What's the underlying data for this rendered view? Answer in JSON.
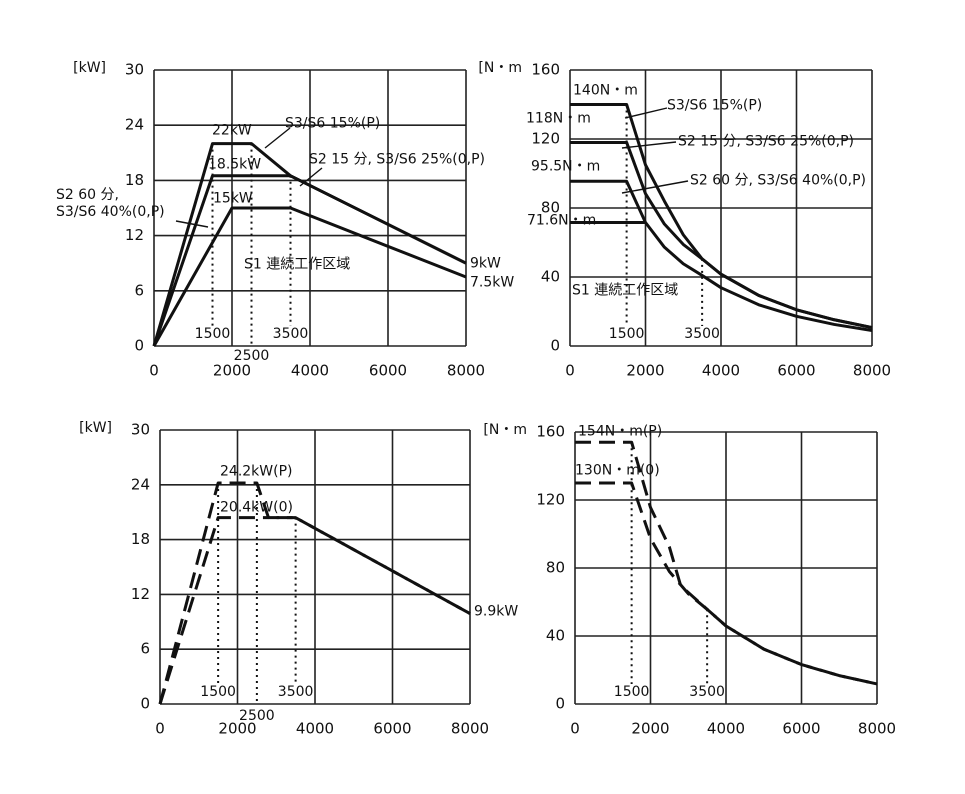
{
  "chart_data": [
    {
      "type": "line",
      "y_label": "[kW]",
      "xlim": [
        0,
        8000
      ],
      "xticks": [
        0,
        2000,
        4000,
        6000,
        8000
      ],
      "ylim": [
        0,
        30
      ],
      "yticks": [
        0,
        6,
        12,
        18,
        24,
        30
      ],
      "grid": true,
      "line_style": "solid",
      "color": "#111111",
      "series": [
        {
          "name": "S3/S6 15%(P)",
          "x": [
            0,
            1500,
            2500,
            3500,
            8000
          ],
          "values": [
            0,
            22,
            22,
            18.5,
            9
          ]
        },
        {
          "name": "S2 15 分, S3/S6 25%(0,P)",
          "x": [
            0,
            1500,
            3500,
            8000
          ],
          "values": [
            0,
            18.5,
            18.5,
            9
          ]
        },
        {
          "name": "S2 60 分,\nS3/S6 40%(0,P)",
          "x": [
            0,
            2000,
            3500,
            8000
          ],
          "values": [
            0,
            15,
            15,
            7.5
          ]
        }
      ],
      "annotations": [
        "22kW",
        "18.5kW",
        "15kW",
        "9kW",
        "7.5kW",
        "S1 連続工作区域"
      ],
      "speed_markers": [
        1500,
        2500,
        3500
      ]
    },
    {
      "type": "line",
      "y_label": "[N・m",
      "xlim": [
        0,
        8000
      ],
      "xticks": [
        0,
        2000,
        4000,
        6000,
        8000
      ],
      "ylim": [
        0,
        160
      ],
      "yticks": [
        0,
        40,
        80,
        120,
        160
      ],
      "grid": true,
      "line_style": "solid",
      "color": "#111111",
      "series": [
        {
          "name": "S3/S6 15%(P)",
          "x": [
            0,
            1500,
            2000,
            2500,
            3000,
            3500,
            4000,
            5000,
            6000,
            7000,
            8000
          ],
          "values": [
            140,
            140,
            105,
            84,
            64.5,
            50.5,
            41.6,
            29.3,
            21,
            15.2,
            10.7
          ]
        },
        {
          "name": "S2 15 分, S3/S6 25%(0,P)",
          "x": [
            0,
            1500,
            2000,
            2500,
            3000,
            3500,
            4000,
            5000,
            6000,
            7000,
            8000
          ],
          "values": [
            118,
            118,
            88.3,
            70.7,
            58.9,
            50.5,
            41.6,
            29.3,
            21,
            15.2,
            10.7
          ]
        },
        {
          "name": "S2 60 分, S3/S6 40%(0,P)",
          "x": [
            0,
            1500,
            2000,
            2500,
            3000,
            3500,
            4000,
            5000,
            6000,
            7000,
            8000
          ],
          "values": [
            95.5,
            95.5,
            71.6,
            57.3,
            47.7,
            40.9,
            33.8,
            23.9,
            17.2,
            12.5,
            9
          ]
        },
        {
          "x": [
            0,
            2000
          ],
          "values": [
            71.6,
            71.6
          ]
        }
      ],
      "annotations": [
        "140N・m",
        "118N・m",
        "95.5N・m",
        "71.6N・m",
        "S1 連続工作区域"
      ],
      "speed_markers": [
        1500,
        3500
      ]
    },
    {
      "type": "line",
      "y_label": "[kW]",
      "xlim": [
        0,
        8000
      ],
      "xticks": [
        0,
        2000,
        4000,
        6000,
        8000
      ],
      "ylim": [
        0,
        30
      ],
      "yticks": [
        0,
        6,
        12,
        18,
        24,
        30
      ],
      "grid": true,
      "line_style": "dashed",
      "color": "#111111",
      "series": [
        {
          "x": [
            0,
            1500,
            2500,
            2800,
            3500,
            8000
          ],
          "values": [
            0,
            24.2,
            24.2,
            20.4,
            20.4,
            9.9
          ]
        },
        {
          "x": [
            0,
            1500,
            3500,
            8000
          ],
          "values": [
            0,
            20.4,
            20.4,
            9.9
          ]
        }
      ],
      "annotations": [
        "24.2kW(P)",
        "20.4kW(0)",
        "9.9kW"
      ],
      "speed_markers": [
        1500,
        2500,
        3500
      ]
    },
    {
      "type": "line",
      "y_label": "[N・m",
      "xlim": [
        0,
        8000
      ],
      "xticks": [
        0,
        2000,
        4000,
        6000,
        8000
      ],
      "ylim": [
        0,
        160
      ],
      "yticks": [
        0,
        40,
        80,
        120,
        160
      ],
      "grid": true,
      "line_style": "dashed",
      "color": "#111111",
      "series": [
        {
          "x": [
            0,
            1500,
            2000,
            2500,
            2800,
            3500,
            4000,
            5000,
            6000,
            7000,
            8000
          ],
          "values": [
            154,
            154,
            115.6,
            92.4,
            69.6,
            55.7,
            45.9,
            32.3,
            23.2,
            16.7,
            11.8
          ]
        },
        {
          "x": [
            0,
            1500,
            2000,
            2500,
            3000,
            3500,
            4000,
            5000,
            6000,
            7000,
            8000
          ],
          "values": [
            130,
            130,
            97.4,
            77.9,
            64.9,
            55.7,
            45.9,
            32.3,
            23.2,
            16.7,
            11.8
          ]
        }
      ],
      "annotations": [
        "154N・m(P)",
        "130N・m(0)"
      ],
      "speed_markers": [
        1500,
        3500
      ]
    }
  ]
}
